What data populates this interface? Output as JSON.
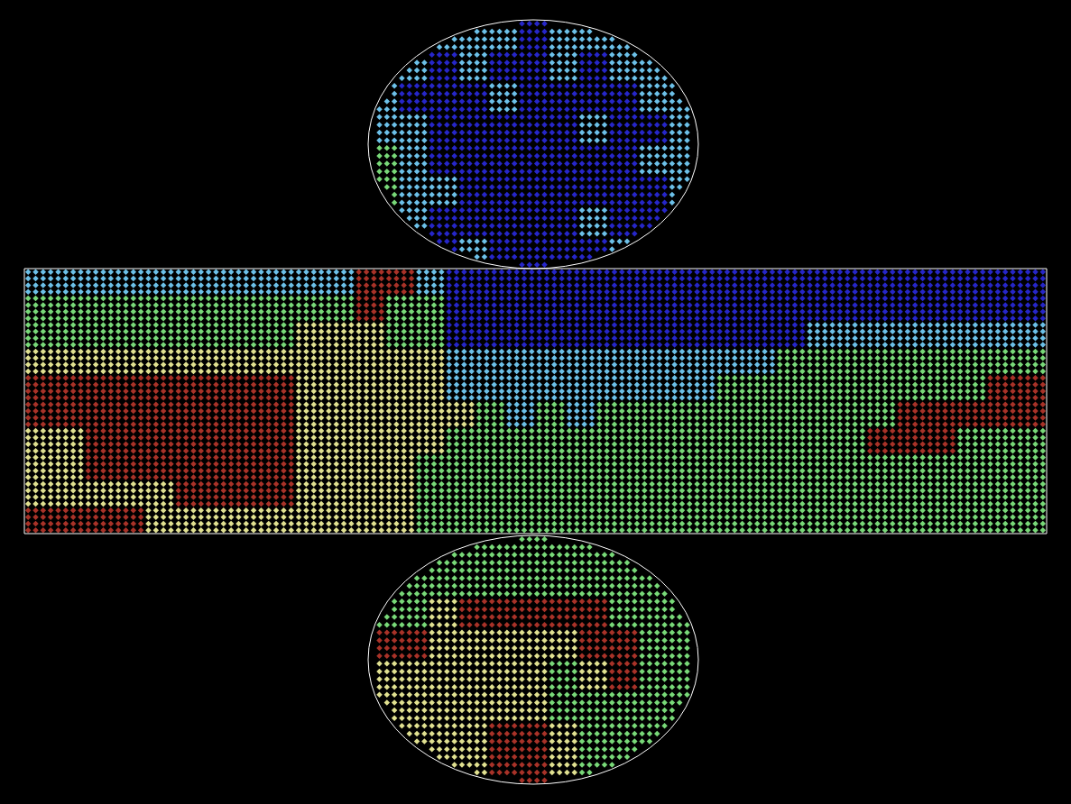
{
  "chart_data": {
    "type": "heatmap",
    "tick_labels": false,
    "levels": [
      1,
      2,
      3,
      4,
      5
    ],
    "colors": [
      "#2626c8",
      "#6cc0e8",
      "#78d878",
      "#e0e090",
      "#a83228"
    ],
    "cells": {
      "top": [
        [
          2,
          2,
          2,
          2,
          2,
          1,
          2,
          2,
          2,
          2,
          2
        ],
        [
          2,
          2,
          1,
          2,
          1,
          1,
          2,
          1,
          2,
          2,
          2
        ],
        [
          2,
          1,
          1,
          1,
          2,
          1,
          1,
          1,
          1,
          2,
          2
        ],
        [
          2,
          2,
          1,
          1,
          1,
          1,
          1,
          2,
          1,
          1,
          2
        ],
        [
          3,
          2,
          1,
          1,
          1,
          1,
          1,
          1,
          1,
          2,
          2
        ],
        [
          3,
          2,
          2,
          1,
          1,
          1,
          1,
          1,
          1,
          1,
          2
        ],
        [
          2,
          2,
          1,
          1,
          1,
          1,
          1,
          2,
          1,
          1,
          2
        ],
        [
          2,
          2,
          1,
          2,
          1,
          1,
          1,
          1,
          2,
          2,
          2
        ]
      ],
      "side": [
        [
          2,
          2,
          2,
          2,
          2,
          2,
          2,
          2,
          2,
          2,
          2,
          5,
          5,
          2,
          1,
          1,
          1,
          1,
          1,
          1,
          1,
          1,
          1,
          1,
          1,
          1,
          1,
          1,
          1,
          1,
          1,
          1,
          1,
          1
        ],
        [
          3,
          3,
          3,
          3,
          3,
          3,
          3,
          3,
          3,
          3,
          3,
          5,
          3,
          3,
          1,
          1,
          1,
          1,
          1,
          1,
          1,
          1,
          1,
          1,
          1,
          1,
          1,
          1,
          1,
          1,
          1,
          1,
          1,
          1
        ],
        [
          3,
          3,
          3,
          3,
          3,
          3,
          3,
          3,
          3,
          4,
          4,
          4,
          3,
          3,
          1,
          1,
          1,
          1,
          1,
          1,
          1,
          1,
          1,
          1,
          1,
          1,
          2,
          2,
          2,
          2,
          2,
          2,
          2,
          2
        ],
        [
          4,
          4,
          4,
          4,
          4,
          4,
          4,
          4,
          4,
          4,
          4,
          4,
          4,
          4,
          2,
          2,
          2,
          2,
          2,
          2,
          2,
          2,
          2,
          2,
          2,
          3,
          3,
          3,
          3,
          3,
          3,
          3,
          3,
          3
        ],
        [
          5,
          5,
          5,
          5,
          5,
          5,
          5,
          5,
          5,
          4,
          4,
          4,
          4,
          4,
          2,
          2,
          2,
          2,
          2,
          2,
          2,
          2,
          2,
          3,
          3,
          3,
          3,
          3,
          3,
          3,
          3,
          3,
          5,
          5
        ],
        [
          5,
          5,
          5,
          5,
          5,
          5,
          5,
          5,
          5,
          4,
          4,
          4,
          4,
          4,
          4,
          3,
          2,
          3,
          2,
          3,
          3,
          3,
          3,
          3,
          3,
          3,
          3,
          3,
          3,
          5,
          5,
          5,
          5,
          5
        ],
        [
          4,
          4,
          5,
          5,
          5,
          5,
          5,
          5,
          5,
          4,
          4,
          4,
          4,
          4,
          3,
          3,
          3,
          3,
          3,
          3,
          3,
          3,
          3,
          3,
          3,
          3,
          3,
          3,
          5,
          5,
          5,
          3,
          3,
          3
        ],
        [
          4,
          4,
          5,
          5,
          5,
          5,
          5,
          5,
          5,
          4,
          4,
          4,
          4,
          3,
          3,
          3,
          3,
          3,
          3,
          3,
          3,
          3,
          3,
          3,
          3,
          3,
          3,
          3,
          3,
          3,
          3,
          3,
          3,
          3
        ],
        [
          4,
          4,
          4,
          4,
          4,
          5,
          5,
          5,
          5,
          4,
          4,
          4,
          4,
          3,
          3,
          3,
          3,
          3,
          3,
          3,
          3,
          3,
          3,
          3,
          3,
          3,
          3,
          3,
          3,
          3,
          3,
          3,
          3,
          3
        ],
        [
          5,
          5,
          5,
          5,
          4,
          4,
          4,
          4,
          4,
          4,
          4,
          4,
          4,
          3,
          3,
          3,
          3,
          3,
          3,
          3,
          3,
          3,
          3,
          3,
          3,
          3,
          3,
          3,
          3,
          3,
          3,
          3,
          3,
          3
        ]
      ],
      "bottom": [
        [
          3,
          3,
          3,
          3,
          3,
          3,
          3,
          3,
          3,
          3,
          3
        ],
        [
          3,
          3,
          3,
          3,
          3,
          3,
          3,
          3,
          3,
          3,
          3
        ],
        [
          3,
          3,
          4,
          5,
          5,
          5,
          5,
          5,
          3,
          3,
          3
        ],
        [
          5,
          5,
          4,
          4,
          4,
          4,
          4,
          5,
          5,
          3,
          3
        ],
        [
          4,
          4,
          4,
          4,
          4,
          4,
          3,
          4,
          5,
          3,
          3
        ],
        [
          4,
          4,
          4,
          4,
          4,
          4,
          3,
          3,
          3,
          3,
          3
        ],
        [
          3,
          4,
          4,
          4,
          5,
          5,
          4,
          3,
          3,
          3,
          3
        ],
        [
          3,
          3,
          4,
          4,
          5,
          5,
          4,
          3,
          3,
          3,
          3
        ]
      ]
    }
  }
}
